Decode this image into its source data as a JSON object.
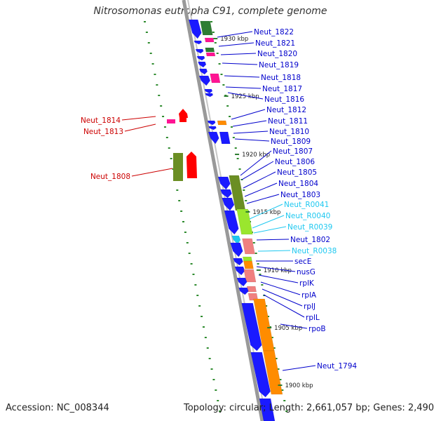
{
  "title": "Nitrosomonas eutropha C91, complete genome",
  "footer": {
    "accession": "Accession: NC_008344",
    "summary": "Topology: circular; Length: 2,661,057 bp; Genes: 2,490"
  },
  "colors": {
    "forward_cds": "#1a1aff",
    "reverse_orange": "#ff8c00",
    "salmon": "#f08080",
    "dark_green": "#2e7d32",
    "olive": "#6b8e23",
    "light_green": "#9ae62e",
    "magenta": "#ff1493",
    "red": "#ff0000",
    "cyan_label": "#1ec8f0",
    "blue_label": "#0000cc",
    "red_label": "#cc0000",
    "backbone": "#888888"
  },
  "kbp_ticks": [
    "1930 kbp",
    "1925 kbp",
    "1920 kbp",
    "1915 kbp",
    "1910 kbp",
    "1905 kbp",
    "1900 kbp"
  ],
  "right_labels": [
    {
      "text": "Neut_1822",
      "color": "blue"
    },
    {
      "text": "Neut_1821",
      "color": "blue"
    },
    {
      "text": "Neut_1820",
      "color": "blue"
    },
    {
      "text": "Neut_1819",
      "color": "blue"
    },
    {
      "text": "Neut_1818",
      "color": "blue"
    },
    {
      "text": "Neut_1817",
      "color": "blue"
    },
    {
      "text": "Neut_1816",
      "color": "blue"
    },
    {
      "text": "Neut_1812",
      "color": "blue"
    },
    {
      "text": "Neut_1811",
      "color": "blue"
    },
    {
      "text": "Neut_1810",
      "color": "blue"
    },
    {
      "text": "Neut_1809",
      "color": "blue"
    },
    {
      "text": "Neut_1807",
      "color": "blue"
    },
    {
      "text": "Neut_1806",
      "color": "blue"
    },
    {
      "text": "Neut_1805",
      "color": "blue"
    },
    {
      "text": "Neut_1804",
      "color": "blue"
    },
    {
      "text": "Neut_1803",
      "color": "blue"
    },
    {
      "text": "Neut_R0041",
      "color": "cyan"
    },
    {
      "text": "Neut_R0040",
      "color": "cyan"
    },
    {
      "text": "Neut_R0039",
      "color": "cyan"
    },
    {
      "text": "Neut_1802",
      "color": "blue"
    },
    {
      "text": "Neut_R0038",
      "color": "cyan"
    },
    {
      "text": "secE",
      "color": "blue"
    },
    {
      "text": "nusG",
      "color": "blue"
    },
    {
      "text": "rplK",
      "color": "blue"
    },
    {
      "text": "rplA",
      "color": "blue"
    },
    {
      "text": "rplJ",
      "color": "blue"
    },
    {
      "text": "rplL",
      "color": "blue"
    },
    {
      "text": "rpoB",
      "color": "blue"
    },
    {
      "text": "Neut_1794",
      "color": "blue"
    }
  ],
  "left_labels": [
    {
      "text": "Neut_1814",
      "color": "red"
    },
    {
      "text": "Neut_1813",
      "color": "red"
    },
    {
      "text": "Neut_1808",
      "color": "red"
    }
  ]
}
